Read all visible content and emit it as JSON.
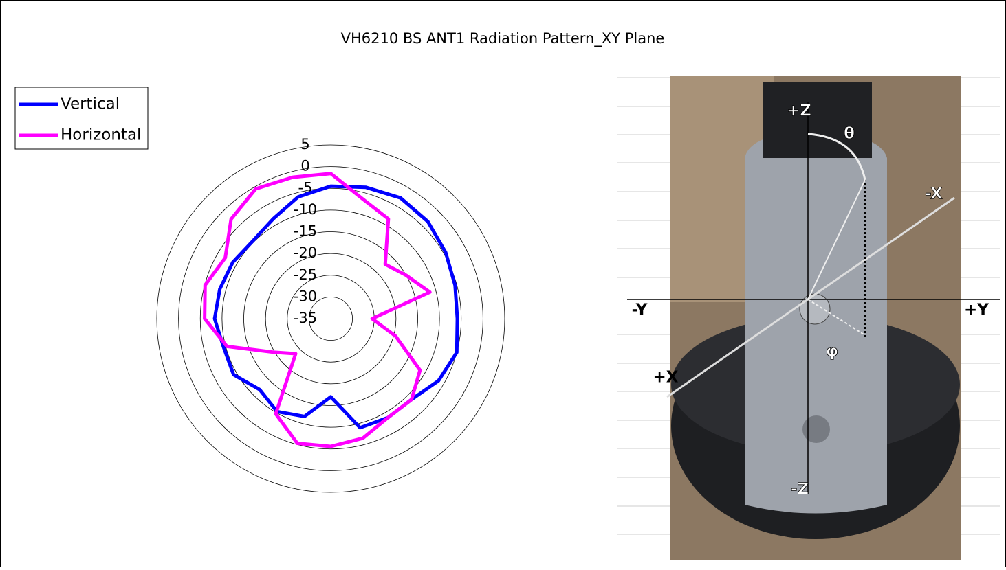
{
  "chart_data": {
    "type": "polar",
    "title": "VH6210 BS ANT1 Radiation Pattern_XY Plane",
    "theta": [
      0,
      15,
      30,
      45,
      60,
      75,
      90,
      105,
      120,
      135,
      150,
      165,
      180,
      195,
      210,
      225,
      240,
      255,
      270,
      285,
      300,
      315,
      330,
      345
    ],
    "series": [
      {
        "name": "Vertical",
        "color": "#0000ff",
        "values": [
          -4.5,
          -3.7,
          -2.9,
          -3.4,
          -4.5,
          -5.4,
          -5.9,
          -5,
          -6.4,
          -8.7,
          -8.7,
          -9,
          -17,
          -11.7,
          -10.3,
          -11.9,
          -9.2,
          -9.5,
          -8.3,
          -8.6,
          -9,
          -9.7,
          -8.5,
          -6
        ]
      },
      {
        "name": "Horizontal",
        "color": "#ff00ff",
        "values": [
          -1.6,
          -6.5,
          -8.5,
          -17.3,
          -15,
          -11.4,
          -25.5,
          -19.6,
          -11.3,
          -8.7,
          -8.7,
          -6.5,
          -5.6,
          -5.3,
          -9.7,
          -23.6,
          -19.6,
          -10.3,
          -6,
          -5.1,
          -7,
          -2.6,
          -0.5,
          -1.3
        ]
      }
    ],
    "ylim": [
      -35,
      5
    ],
    "yticks": [
      5,
      0,
      -5,
      -10,
      -15,
      -20,
      -25,
      -30,
      -35
    ],
    "grid": true,
    "legend": "top-left",
    "annotations": [
      "+Z",
      "θ",
      "-X",
      "-Y",
      "+Y",
      "+X",
      "φ",
      "-Z"
    ]
  }
}
